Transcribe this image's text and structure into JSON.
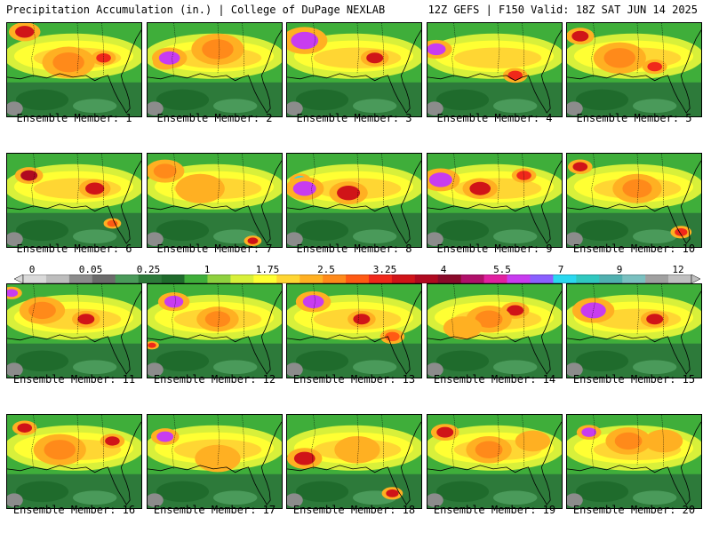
{
  "header": {
    "left": "Precipitation Accumulation (in.) | College of DuPage NEXLAB",
    "right": "12Z GEFS | F150 Valid: 18Z SAT JUN 14 2025"
  },
  "members": [
    {
      "label": "Ensemble Member: 1"
    },
    {
      "label": "Ensemble Member: 2"
    },
    {
      "label": "Ensemble Member: 3"
    },
    {
      "label": "Ensemble Member: 4"
    },
    {
      "label": "Ensemble Member: 5"
    },
    {
      "label": "Ensemble Member: 6"
    },
    {
      "label": "Ensemble Member: 7"
    },
    {
      "label": "Ensemble Member: 8"
    },
    {
      "label": "Ensemble Member: 9"
    },
    {
      "label": "Ensemble Member: 10"
    },
    {
      "label": "Ensemble Member: 11"
    },
    {
      "label": "Ensemble Member: 12"
    },
    {
      "label": "Ensemble Member: 13"
    },
    {
      "label": "Ensemble Member: 14"
    },
    {
      "label": "Ensemble Member: 15"
    },
    {
      "label": "Ensemble Member: 16"
    },
    {
      "label": "Ensemble Member: 17"
    },
    {
      "label": "Ensemble Member: 18"
    },
    {
      "label": "Ensemble Member: 19"
    },
    {
      "label": "Ensemble Member: 20"
    }
  ],
  "colorbar": {
    "tick_labels": [
      "0",
      "0.05",
      "0.25",
      "1",
      "1.75",
      "2.5",
      "3.25",
      "4",
      "5.5",
      "7",
      "9",
      "12"
    ],
    "colors": [
      "#d9d9d9",
      "#bdbdbd",
      "#8c8c8c",
      "#6b6b6b",
      "#4a9a5a",
      "#2d7a3a",
      "#1f6b2c",
      "#3fae3a",
      "#8fd13f",
      "#d8f03a",
      "#ffff33",
      "#ffd633",
      "#ffb022",
      "#ff8a1a",
      "#ff5a14",
      "#f0281a",
      "#d01418",
      "#b00a20",
      "#8a0a2a",
      "#b0106a",
      "#e020a0",
      "#c83cf0",
      "#8a60ff",
      "#2ad8f0",
      "#30c8c0",
      "#50b0b0",
      "#7ac0c0",
      "#a0a0a0",
      "#c0c0c0"
    ]
  }
}
